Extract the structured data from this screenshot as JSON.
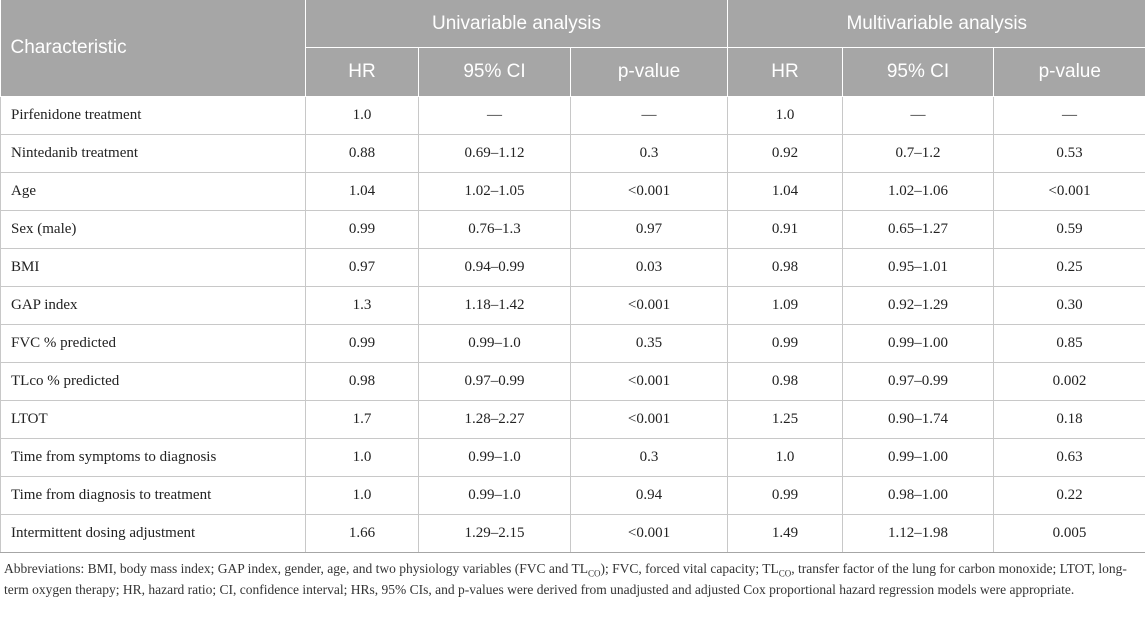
{
  "table": {
    "header_top": {
      "characteristic": "Characteristic",
      "univariable": "Univariable analysis",
      "multivariable": "Multivariable analysis"
    },
    "header_sub": [
      "HR",
      "95% CI",
      "p-value",
      "HR",
      "95% CI",
      "p-value"
    ],
    "rows": [
      {
        "label": "Pirfenidone treatment",
        "cells": [
          "1.0",
          "—",
          "—",
          "1.0",
          "—",
          "—"
        ]
      },
      {
        "label": "Nintedanib treatment",
        "cells": [
          "0.88",
          "0.69–1.12",
          "0.3",
          "0.92",
          "0.7–1.2",
          "0.53"
        ]
      },
      {
        "label": "Age",
        "cells": [
          "1.04",
          "1.02–1.05",
          "<0.001",
          "1.04",
          "1.02–1.06",
          "<0.001"
        ]
      },
      {
        "label": "Sex (male)",
        "cells": [
          "0.99",
          "0.76–1.3",
          "0.97",
          "0.91",
          "0.65–1.27",
          "0.59"
        ]
      },
      {
        "label": "BMI",
        "cells": [
          "0.97",
          "0.94–0.99",
          "0.03",
          "0.98",
          "0.95–1.01",
          "0.25"
        ]
      },
      {
        "label": "GAP index",
        "cells": [
          "1.3",
          "1.18–1.42",
          "<0.001",
          "1.09",
          "0.92–1.29",
          "0.30"
        ]
      },
      {
        "label": "FVC % predicted",
        "cells": [
          "0.99",
          "0.99–1.0",
          "0.35",
          "0.99",
          "0.99–1.00",
          "0.85"
        ]
      },
      {
        "label": "TLco % predicted",
        "cells": [
          "0.98",
          "0.97–0.99",
          "<0.001",
          "0.98",
          "0.97–0.99",
          "0.002"
        ]
      },
      {
        "label": "LTOT",
        "cells": [
          "1.7",
          "1.28–2.27",
          "<0.001",
          "1.25",
          "0.90–1.74",
          "0.18"
        ]
      },
      {
        "label": "Time from symptoms to diagnosis",
        "cells": [
          "1.0",
          "0.99–1.0",
          "0.3",
          "1.0",
          "0.99–1.00",
          "0.63"
        ]
      },
      {
        "label": "Time from diagnosis to treatment",
        "cells": [
          "1.0",
          "0.99–1.0",
          "0.94",
          "0.99",
          "0.98–1.00",
          "0.22"
        ]
      },
      {
        "label": "Intermittent dosing adjustment",
        "cells": [
          "1.66",
          "1.29–2.15",
          "<0.001",
          "1.49",
          "1.12–1.98",
          "0.005"
        ]
      }
    ]
  },
  "footnote": {
    "p1": "Abbreviations: BMI, body mass index; GAP index, gender, age, and two physiology variables (FVC and TL",
    "sub1": "CO",
    "p2": "); FVC, forced vital capacity; TL",
    "sub2": "CO",
    "p3": ", transfer factor of the lung for carbon monoxide; LTOT, long-term oxygen therapy; HR, hazard ratio; CI, confidence interval; HRs, 95% CIs, and p-values were derived from unadjusted and adjusted Cox proportional hazard regression models were appropriate."
  }
}
